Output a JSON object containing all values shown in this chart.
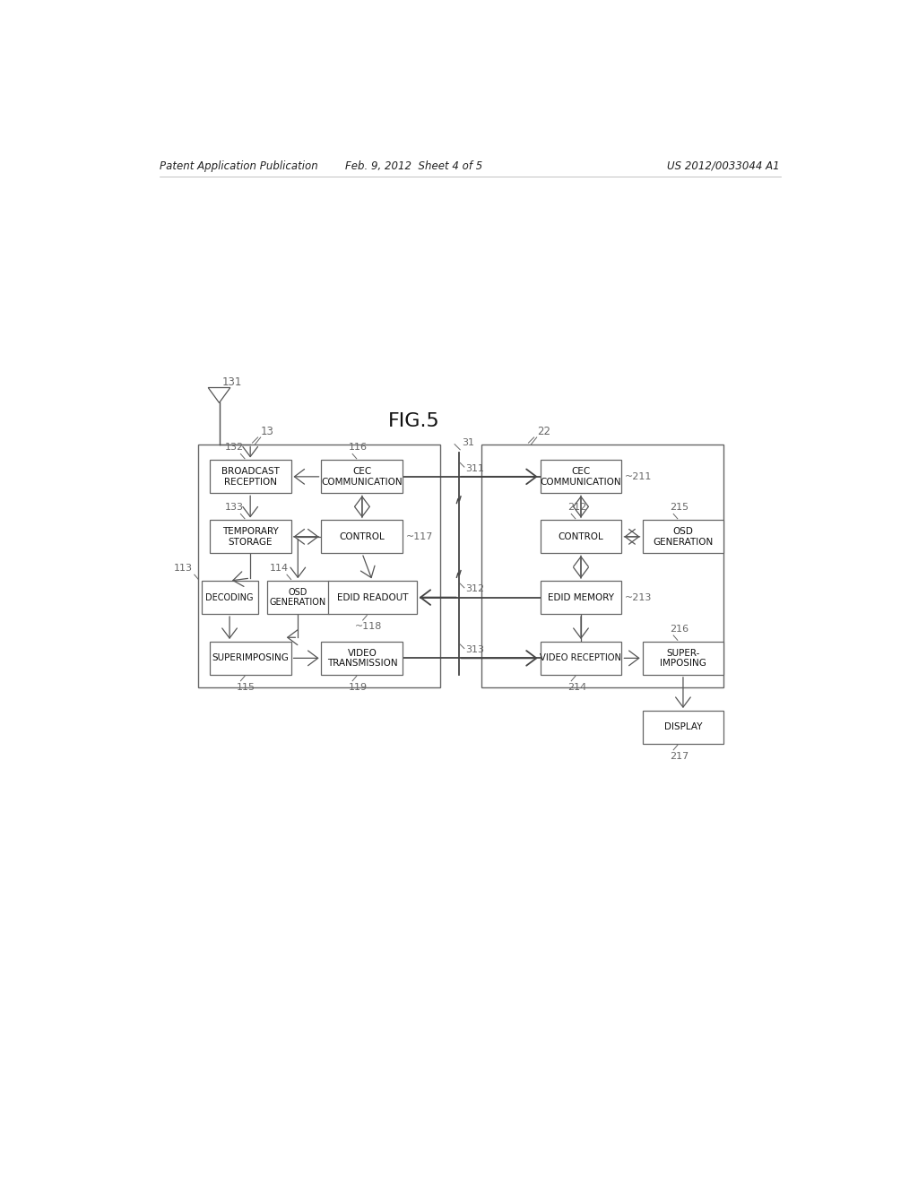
{
  "title": "FIG.5",
  "header_left": "Patent Application Publication",
  "header_mid": "Feb. 9, 2012  Sheet 4 of 5",
  "header_right": "US 2012/0033044 A1",
  "bg_color": "#ffffff",
  "box_edge": "#666666",
  "arrow_color": "#555555",
  "label_color": "#666666",
  "bus_color": "#444444"
}
